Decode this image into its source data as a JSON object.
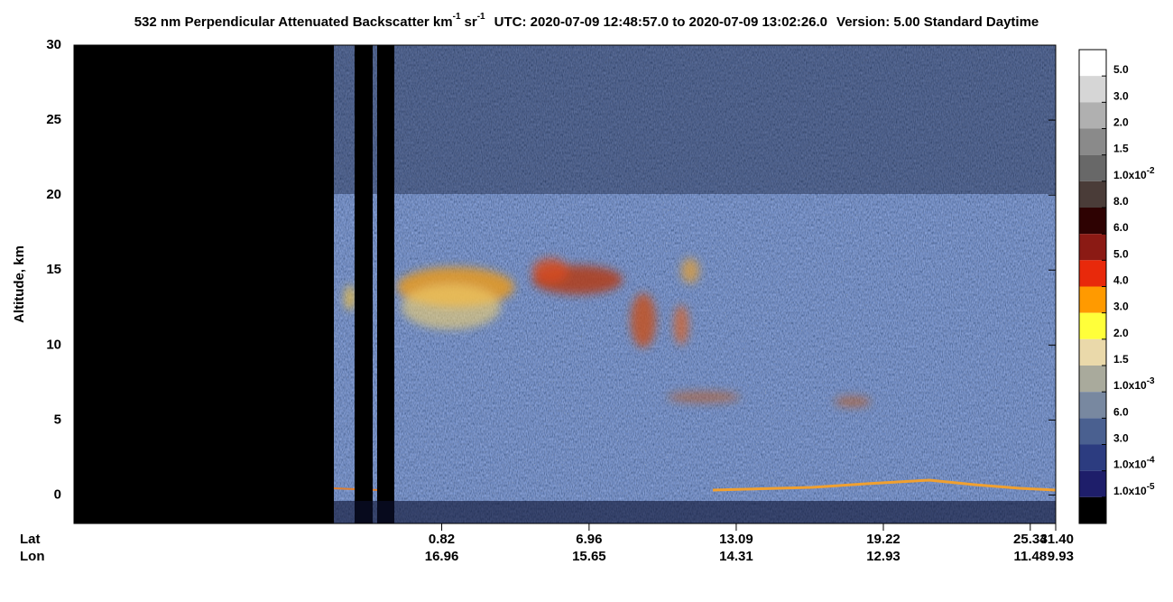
{
  "chart_data": {
    "type": "curtain",
    "title": {
      "main": "532 nm Perpendicular Attenuated Backscatter km",
      "exp1": "-1",
      "unit2": "sr",
      "exp2": "-1",
      "time": "UTC: 2020-07-09 12:48:57.0 to 2020-07-09 13:02:26.0",
      "version": "Version: 5.00 Standard Daytime"
    },
    "y_label": "Altitude, km",
    "ylim": [
      -1.9,
      30
    ],
    "yticks": [
      0,
      5,
      10,
      15,
      20,
      25,
      30
    ],
    "x_row_labels": [
      "Lat",
      "Lon"
    ],
    "xlim": [
      -14.5,
      26.4
    ],
    "xticks": [
      {
        "value": 0.82,
        "label": "0.82",
        "lon": "16.96"
      },
      {
        "value": 6.96,
        "label": "6.96",
        "lon": "15.65"
      },
      {
        "value": 13.09,
        "label": "13.09",
        "lon": "14.31"
      },
      {
        "value": 19.22,
        "label": "19.22",
        "lon": "12.93"
      },
      {
        "value": 25.34,
        "label": "25.34",
        "lon": "11.48"
      }
    ],
    "end_tick": {
      "label": "31.40",
      "lon": "9.93"
    },
    "colorbar": {
      "colors": [
        "#ffffff",
        "#d6d6d6",
        "#b0b0b0",
        "#8a8a8a",
        "#686868",
        "#4a3c38",
        "#2e0202",
        "#8b1a14",
        "#e8290b",
        "#ff9a00",
        "#ffff3a",
        "#ead9aa",
        "#a9aa9c",
        "#7888a0",
        "#4a6090",
        "#2c3c80",
        "#1e1e6a",
        "#000000"
      ],
      "boundaries": [
        {
          "value": 0.05,
          "label": "5.0"
        },
        {
          "value": 0.03,
          "label": "3.0"
        },
        {
          "value": 0.02,
          "label": "2.0"
        },
        {
          "value": 0.015,
          "label": "1.5"
        },
        {
          "value": 0.01,
          "label": "1.0x10",
          "exponent": "-2"
        },
        {
          "value": 0.008,
          "label": "8.0"
        },
        {
          "value": 0.006,
          "label": "6.0"
        },
        {
          "value": 0.005,
          "label": "5.0"
        },
        {
          "value": 0.004,
          "label": "4.0"
        },
        {
          "value": 0.003,
          "label": "3.0"
        },
        {
          "value": 0.002,
          "label": "2.0"
        },
        {
          "value": 0.0015,
          "label": "1.5"
        },
        {
          "value": 0.001,
          "label": "1.0x10",
          "exponent": "-3"
        },
        {
          "value": 0.0006,
          "label": "6.0"
        },
        {
          "value": 0.0003,
          "label": "3.0"
        },
        {
          "value": 0.0001,
          "label": "1.0x10",
          "exponent": "-4"
        },
        {
          "value": 1e-05,
          "label": "1.0x10",
          "exponent": "-5"
        }
      ]
    }
  }
}
